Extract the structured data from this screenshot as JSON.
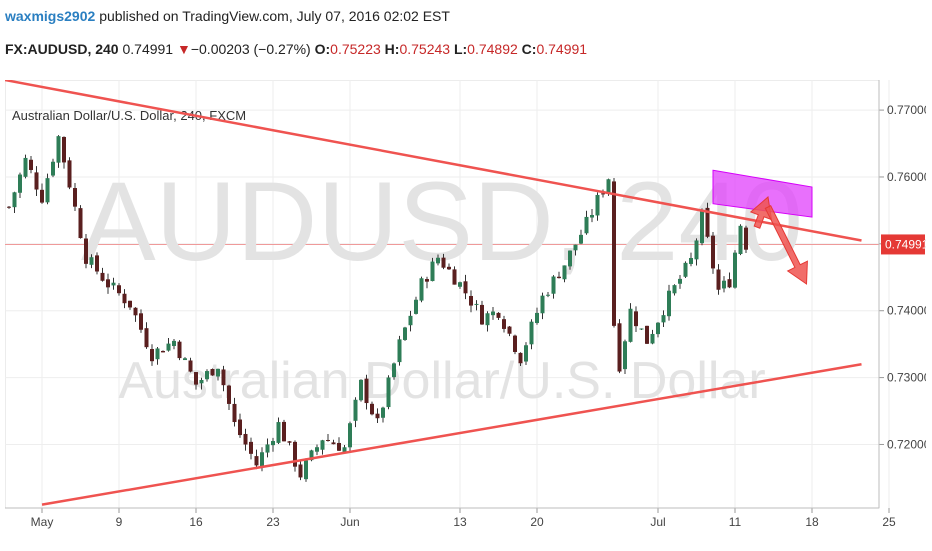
{
  "header": {
    "author": "waxmigs2902",
    "published_text": "published on TradingView.com, July 07, 2016 02:02 EST",
    "symbol": "FX:AUDUSD, 240",
    "last_price": "0.74991",
    "change_arrow": "▼",
    "change": "−0.00203 (−0.27%)",
    "o_label": "O:",
    "o_value": "0.75223",
    "h_label": "H:",
    "h_value": "0.75243",
    "l_label": "L:",
    "l_value": "0.74892",
    "c_label": "C:",
    "c_value": "0.74991"
  },
  "chart_data": {
    "type": "candlestick",
    "title": "Australian Dollar/U.S. Dollar, 240, FXCM",
    "watermark_symbol": "AUDUSD, 240",
    "watermark_name": "Australian Dollar/U.S. Dollar",
    "x_tick_labels": [
      "May",
      "9",
      "16",
      "23",
      "Jun",
      "13",
      "20",
      "Jul",
      "11",
      "18",
      "25"
    ],
    "y_tick_labels": [
      "0.77000",
      "0.76000",
      "0.75000",
      "0.74000",
      "0.73000",
      "0.72000"
    ],
    "ylim": [
      0.7105,
      0.7745
    ],
    "last_price_label": "0.74991",
    "last_price": 0.74991,
    "price_path": [
      [
        0,
        0.7555
      ],
      [
        3,
        0.7625
      ],
      [
        6,
        0.757
      ],
      [
        9,
        0.766
      ],
      [
        11,
        0.759
      ],
      [
        14,
        0.748
      ],
      [
        18,
        0.744
      ],
      [
        22,
        0.741
      ],
      [
        26,
        0.7335
      ],
      [
        30,
        0.7355
      ],
      [
        34,
        0.729
      ],
      [
        38,
        0.732
      ],
      [
        41,
        0.723
      ],
      [
        45,
        0.717
      ],
      [
        49,
        0.723
      ],
      [
        53,
        0.7155
      ],
      [
        57,
        0.721
      ],
      [
        61,
        0.7195
      ],
      [
        64,
        0.729
      ],
      [
        67,
        0.723
      ],
      [
        71,
        0.735
      ],
      [
        75,
        0.744
      ],
      [
        78,
        0.748
      ],
      [
        82,
        0.744
      ],
      [
        86,
        0.739
      ],
      [
        89,
        0.74
      ],
      [
        93,
        0.733
      ],
      [
        97,
        0.742
      ],
      [
        101,
        0.747
      ],
      [
        105,
        0.753
      ],
      [
        109,
        0.76
      ],
      [
        110,
        0.738
      ],
      [
        111,
        0.732
      ],
      [
        113,
        0.74
      ],
      [
        116,
        0.7355
      ],
      [
        120,
        0.742
      ],
      [
        124,
        0.7475
      ],
      [
        126,
        0.754
      ],
      [
        129,
        0.743
      ],
      [
        131,
        0.7445
      ],
      [
        133,
        0.753
      ],
      [
        134,
        0.7499
      ]
    ],
    "resistance_line": [
      [
        -4,
        0.775
      ],
      [
        155,
        0.7505
      ]
    ],
    "support_line": [
      [
        6,
        0.711
      ],
      [
        155,
        0.732
      ]
    ],
    "red_price_line": 0.7499,
    "resistance_zone": {
      "x": [
        128,
        146
      ],
      "y_left": [
        0.756,
        0.761
      ],
      "y_right": [
        0.754,
        0.7585
      ]
    },
    "arrows": [
      {
        "from": [
          136,
          0.7525
        ],
        "to": [
          138,
          0.757
        ]
      },
      {
        "from": [
          138,
          0.7555
        ],
        "to": [
          145,
          0.744
        ]
      }
    ],
    "grid": true
  }
}
